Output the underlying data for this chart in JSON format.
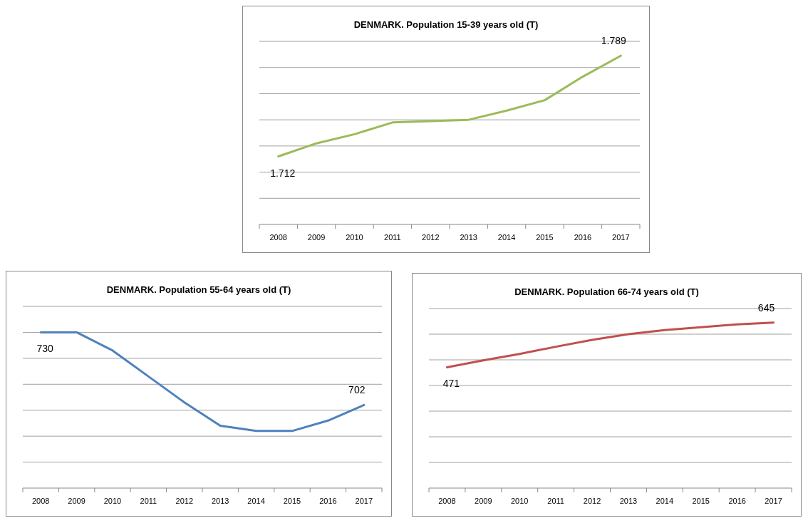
{
  "chart_data": [
    {
      "type": "line",
      "title": "DENMARK. Population  15-39 years old (T)",
      "categories": [
        "2008",
        "2009",
        "2010",
        "2011",
        "2012",
        "2013",
        "2014",
        "2015",
        "2016",
        "2017"
      ],
      "series": [
        {
          "color": "#9bbb59",
          "values": [
            1.712,
            1.722,
            1.729,
            1.738,
            1.739,
            1.74,
            1.747,
            1.755,
            1.773,
            1.789
          ],
          "value_labels": [
            "1.712",
            null,
            null,
            null,
            null,
            null,
            null,
            null,
            null,
            "1.789"
          ]
        }
      ],
      "ylim": [
        1.66,
        1.8
      ],
      "yticks": [
        {
          "value": 1.66,
          "label": null
        },
        {
          "value": 1.68,
          "label": null
        },
        {
          "value": 1.7,
          "label": null
        },
        {
          "value": 1.72,
          "label": null
        },
        {
          "value": 1.74,
          "label": null
        },
        {
          "value": 1.76,
          "label": null
        },
        {
          "value": 1.78,
          "label": null
        },
        {
          "value": 1.8,
          "label": null
        }
      ],
      "grid": "y",
      "tick_labels": "x"
    },
    {
      "type": "line",
      "title": "DENMARK. Population  55-64 years old (T)",
      "categories": [
        "2008",
        "2009",
        "2010",
        "2011",
        "2012",
        "2013",
        "2014",
        "2015",
        "2016",
        "2017"
      ],
      "series": [
        {
          "color": "#4f81bd",
          "values": [
            730,
            730,
            723,
            713,
            703,
            694,
            692,
            692,
            696,
            702
          ],
          "value_labels": [
            "730",
            null,
            null,
            null,
            null,
            null,
            null,
            null,
            null,
            "702"
          ]
        }
      ],
      "ylim": [
        670,
        740
      ],
      "yticks": [
        {
          "value": 670,
          "label": null
        },
        {
          "value": 680,
          "label": null
        },
        {
          "value": 690,
          "label": null
        },
        {
          "value": 700,
          "label": null
        },
        {
          "value": 710,
          "label": null
        },
        {
          "value": 720,
          "label": null
        },
        {
          "value": 730,
          "label": null
        },
        {
          "value": 740,
          "label": null
        }
      ],
      "grid": "y",
      "tick_labels": "x"
    },
    {
      "type": "line",
      "title": "DENMARK. Population  66-74 years old (T)",
      "categories": [
        "2008",
        "2009",
        "2010",
        "2011",
        "2012",
        "2013",
        "2014",
        "2015",
        "2016",
        "2017"
      ],
      "series": [
        {
          "color": "#c0504d",
          "values": [
            471,
            498,
            523,
            551,
            578,
            600,
            616,
            627,
            638,
            645
          ],
          "value_labels": [
            "471",
            null,
            null,
            null,
            null,
            null,
            null,
            null,
            null,
            "645"
          ]
        }
      ],
      "ylim": [
        0,
        700
      ],
      "yticks": [
        {
          "value": 0,
          "label": null
        },
        {
          "value": 100,
          "label": null
        },
        {
          "value": 200,
          "label": null
        },
        {
          "value": 300,
          "label": null
        },
        {
          "value": 400,
          "label": null
        },
        {
          "value": 500,
          "label": null
        },
        {
          "value": 600,
          "label": null
        },
        {
          "value": 700,
          "label": null
        }
      ],
      "grid": "y",
      "tick_labels": "x"
    }
  ]
}
